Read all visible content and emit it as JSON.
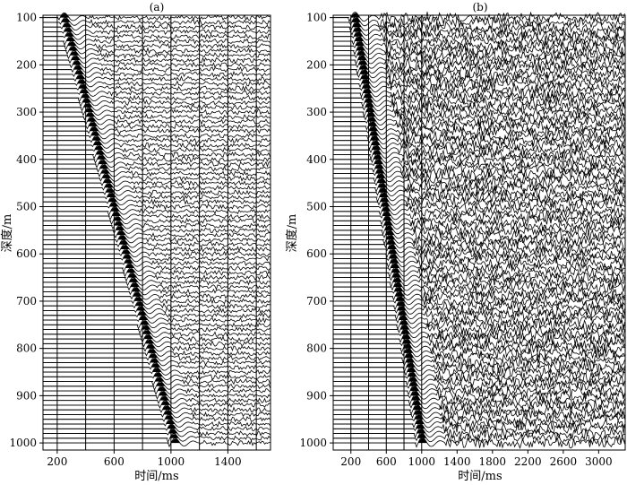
{
  "chart_data": [
    {
      "type": "line",
      "panel_label": "(a)",
      "description_kind": "seismic wiggle traces (VSP record)",
      "xlabel": "时间/ms",
      "ylabel": "深度/m",
      "xlim": [
        100,
        1700
      ],
      "ylim": [
        1015,
        95
      ],
      "xticks": [
        200,
        600,
        1000,
        1400
      ],
      "yticks": [
        100,
        200,
        300,
        400,
        500,
        600,
        700,
        800,
        900,
        1000
      ],
      "grid_x": [
        200,
        400,
        600,
        800,
        1000,
        1200,
        1400,
        1600
      ],
      "trace_depths": {
        "start": 100,
        "end": 1000,
        "step": 10
      },
      "first_arrival": {
        "depth": [
          100,
          1000
        ],
        "time": [
          220,
          1000
        ]
      },
      "noise_level": "low",
      "grid": true
    },
    {
      "type": "line",
      "panel_label": "(b)",
      "description_kind": "seismic wiggle traces (VSP record)",
      "xlabel": "时间/ms",
      "ylabel": "深度/m",
      "xlim": [
        0,
        3300
      ],
      "ylim": [
        1015,
        95
      ],
      "xticks": [
        200,
        600,
        1000,
        1400,
        1800,
        2200,
        2600,
        3000
      ],
      "yticks": [
        100,
        200,
        300,
        400,
        500,
        600,
        700,
        800,
        900,
        1000
      ],
      "grid_x": [
        200,
        400,
        600,
        800,
        1000
      ],
      "trace_depths": {
        "start": 100,
        "end": 1000,
        "step": 10
      },
      "first_arrival": {
        "depth": [
          100,
          1000
        ],
        "time": [
          200,
          960
        ]
      },
      "noise_level": "high",
      "grid": true
    }
  ]
}
